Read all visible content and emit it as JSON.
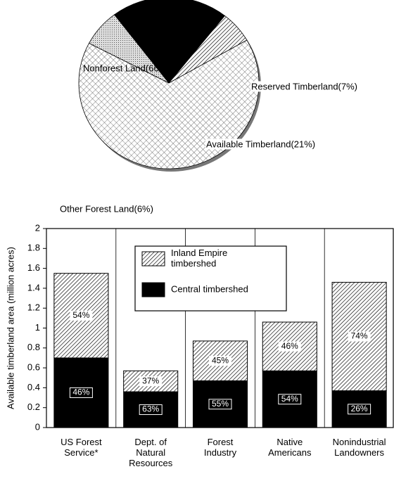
{
  "chart_data": [
    {
      "type": "pie",
      "categories": [
        "Nonforest Land(66%)",
        "Reserved Timberland(7%)",
        "Available Timberland(21%)",
        "Other Forest Land(6%)"
      ],
      "values": [
        66,
        7,
        21,
        6
      ],
      "colors": [
        "#ffffff",
        "#bbbbbb",
        "#000000",
        "#ffffff"
      ],
      "patterns": [
        "crosshatch",
        "dots",
        "solid",
        "hatch"
      ]
    },
    {
      "type": "bar",
      "stacked": true,
      "ylabel": "Available timberland area (million acres)",
      "categories": [
        "US Forest\nService*",
        "Dept. of\nNatural\nResources",
        "Forest\nIndustry",
        "Native\nAmericans",
        "Nonindustrial\nLandowners"
      ],
      "series": [
        {
          "name": "Central timbershed",
          "color": "#000000",
          "pattern": "solid",
          "values": [
            0.7,
            0.36,
            0.47,
            0.57,
            0.37
          ],
          "share_labels": [
            "46%",
            "63%",
            "55%",
            "54%",
            "26%"
          ]
        },
        {
          "name": "Inland Empire\ntimbershed",
          "color": "#ffffff",
          "pattern": "hatch",
          "values": [
            0.85,
            0.21,
            0.4,
            0.49,
            1.09
          ],
          "share_labels": [
            "54%",
            "37%",
            "45%",
            "46%",
            "74%"
          ]
        }
      ],
      "ylim": [
        0,
        2
      ],
      "yticks": [
        0,
        0.2,
        0.4,
        0.6,
        0.8,
        1,
        1.2,
        1.4,
        1.6,
        1.8,
        2
      ]
    }
  ]
}
